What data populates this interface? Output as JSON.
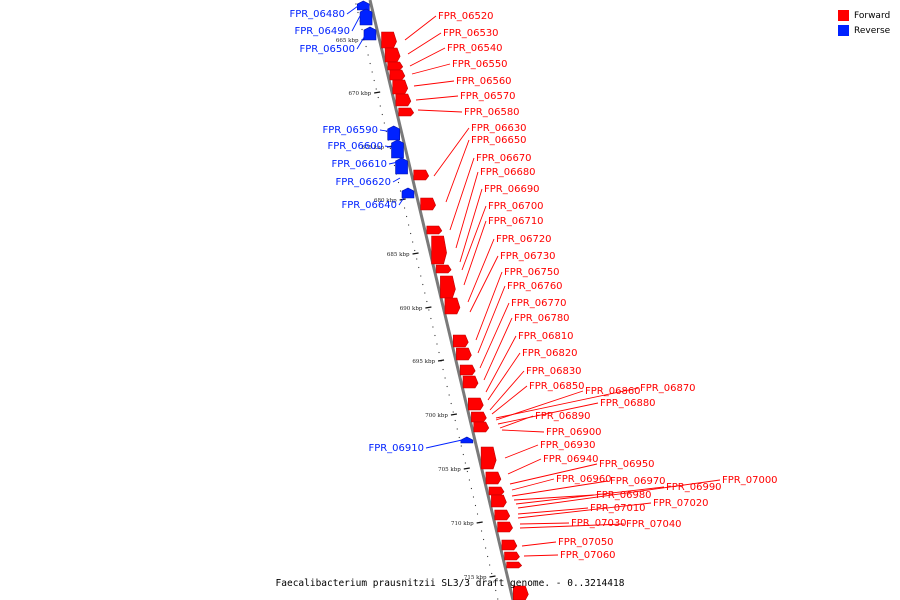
{
  "caption": "Faecalibacterium prausnitzii SL3/3 draft genome. - 0..3214418",
  "colors": {
    "forward": "#ff0000",
    "reverse": "#0022ff"
  },
  "legend": [
    {
      "label": "Forward",
      "strand": "forward"
    },
    {
      "label": "Reverse",
      "strand": "reverse"
    }
  ],
  "scale": {
    "unit": "kbp",
    "ticks": [
      665,
      670,
      675,
      680,
      685,
      690,
      695,
      700,
      705,
      710,
      715
    ]
  },
  "genes": [
    {
      "id": "FPR_06480",
      "strand": "reverse"
    },
    {
      "id": "FPR_06490",
      "strand": "reverse"
    },
    {
      "id": "FPR_06500",
      "strand": "reverse"
    },
    {
      "id": "FPR_06520",
      "strand": "forward"
    },
    {
      "id": "FPR_06530",
      "strand": "forward"
    },
    {
      "id": "FPR_06540",
      "strand": "forward"
    },
    {
      "id": "FPR_06550",
      "strand": "forward"
    },
    {
      "id": "FPR_06560",
      "strand": "forward"
    },
    {
      "id": "FPR_06570",
      "strand": "forward"
    },
    {
      "id": "FPR_06580",
      "strand": "forward"
    },
    {
      "id": "FPR_06590",
      "strand": "reverse"
    },
    {
      "id": "FPR_06600",
      "strand": "reverse"
    },
    {
      "id": "FPR_06610",
      "strand": "reverse"
    },
    {
      "id": "FPR_06620",
      "strand": "reverse"
    },
    {
      "id": "FPR_06640",
      "strand": "reverse"
    },
    {
      "id": "FPR_06630",
      "strand": "forward"
    },
    {
      "id": "FPR_06650",
      "strand": "forward"
    },
    {
      "id": "FPR_06670",
      "strand": "forward"
    },
    {
      "id": "FPR_06680",
      "strand": "forward"
    },
    {
      "id": "FPR_06690",
      "strand": "forward"
    },
    {
      "id": "FPR_06700",
      "strand": "forward"
    },
    {
      "id": "FPR_06710",
      "strand": "forward"
    },
    {
      "id": "FPR_06720",
      "strand": "forward"
    },
    {
      "id": "FPR_06730",
      "strand": "forward"
    },
    {
      "id": "FPR_06750",
      "strand": "forward"
    },
    {
      "id": "FPR_06760",
      "strand": "forward"
    },
    {
      "id": "FPR_06770",
      "strand": "forward"
    },
    {
      "id": "FPR_06780",
      "strand": "forward"
    },
    {
      "id": "FPR_06810",
      "strand": "forward"
    },
    {
      "id": "FPR_06820",
      "strand": "forward"
    },
    {
      "id": "FPR_06830",
      "strand": "forward"
    },
    {
      "id": "FPR_06850",
      "strand": "forward"
    },
    {
      "id": "FPR_06860",
      "strand": "forward"
    },
    {
      "id": "FPR_06870",
      "strand": "forward"
    },
    {
      "id": "FPR_06880",
      "strand": "forward"
    },
    {
      "id": "FPR_06890",
      "strand": "forward"
    },
    {
      "id": "FPR_06900",
      "strand": "forward"
    },
    {
      "id": "FPR_06910",
      "strand": "reverse"
    },
    {
      "id": "FPR_06930",
      "strand": "forward"
    },
    {
      "id": "FPR_06940",
      "strand": "forward"
    },
    {
      "id": "FPR_06950",
      "strand": "forward"
    },
    {
      "id": "FPR_06960",
      "strand": "forward"
    },
    {
      "id": "FPR_06970",
      "strand": "forward"
    },
    {
      "id": "FPR_06980",
      "strand": "forward"
    },
    {
      "id": "FPR_06990",
      "strand": "forward"
    },
    {
      "id": "FPR_07000",
      "strand": "forward"
    },
    {
      "id": "FPR_07010",
      "strand": "forward"
    },
    {
      "id": "FPR_07020",
      "strand": "forward"
    },
    {
      "id": "FPR_07030",
      "strand": "forward"
    },
    {
      "id": "FPR_07040",
      "strand": "forward"
    },
    {
      "id": "FPR_07050",
      "strand": "forward"
    },
    {
      "id": "FPR_07060",
      "strand": "forward"
    }
  ]
}
